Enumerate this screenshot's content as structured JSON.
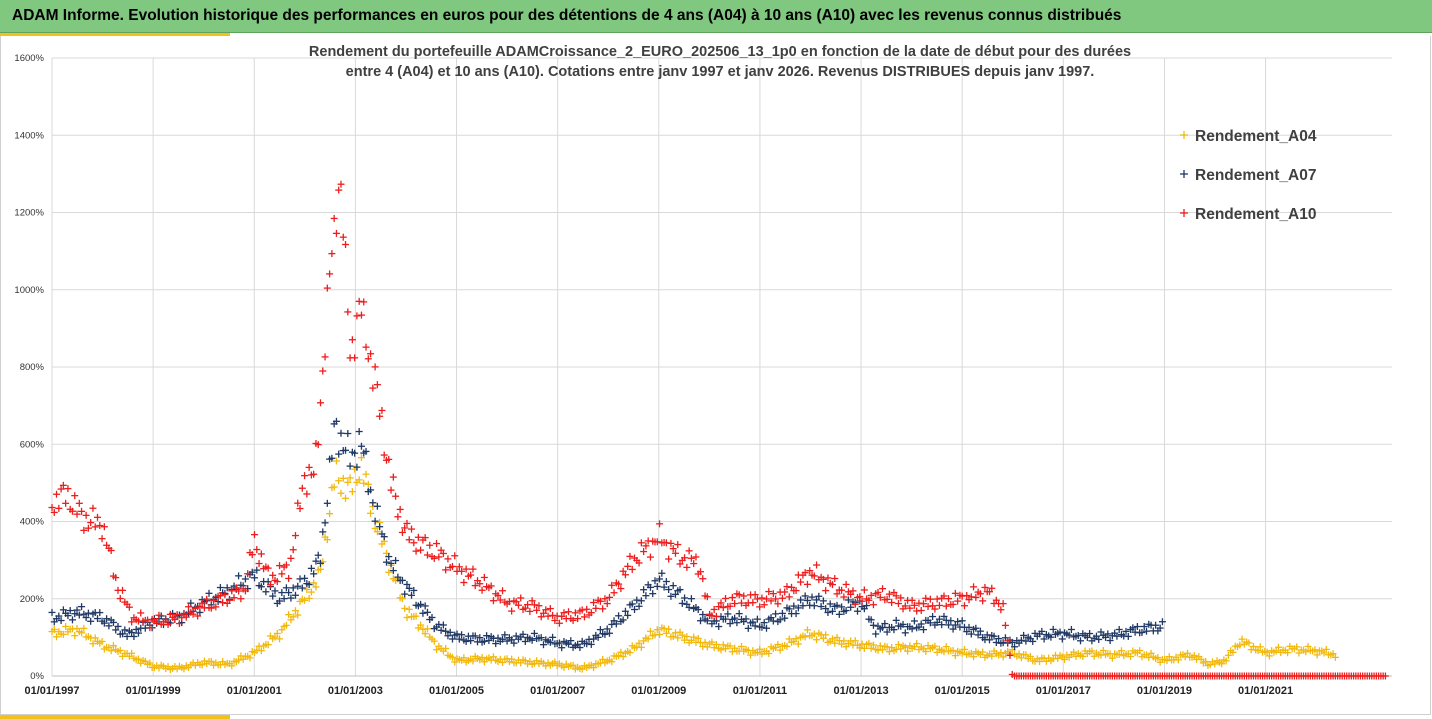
{
  "header": {
    "banner": "ADAM Informe. Evolution historique des performances en euros pour des détentions de 4 ans (A04) à 10 ans (A10) avec les revenus connus distribués"
  },
  "chart_data": {
    "type": "scatter",
    "title_line1": "Rendement du portefeuille ADAMCroissance_2_EURO_202506_13_1p0  en fonction de la date de début pour des durées",
    "title_line2": "entre 4 (A04) et 10 ans (A10). Cotations entre janv 1997 et janv 2026. Revenus DISTRIBUES depuis janv 1997.",
    "xlabel": "",
    "ylabel": "",
    "xlim": [
      1997.0,
      2023.5
    ],
    "ylim": [
      0,
      1600
    ],
    "y_ticks": [
      0,
      200,
      400,
      600,
      800,
      1000,
      1200,
      1400,
      1600
    ],
    "y_tick_labels": [
      "0%",
      "200%",
      "400%",
      "600%",
      "800%",
      "1000%",
      "1200%",
      "1400%",
      "1600%"
    ],
    "x_ticks": [
      1997,
      1999,
      2001,
      2003,
      2005,
      2007,
      2009,
      2011,
      2013,
      2015,
      2017,
      2019,
      2021
    ],
    "x_tick_labels": [
      "01/01/1997",
      "01/01/1999",
      "01/01/2001",
      "01/01/2003",
      "01/01/2005",
      "01/01/2007",
      "01/01/2009",
      "01/01/2011",
      "01/01/2013",
      "01/01/2015",
      "01/01/2017",
      "01/01/2019",
      "01/01/2021"
    ],
    "grid": true,
    "legend_position": "right",
    "marker": "+",
    "series": [
      {
        "name": "Rendement_A04",
        "color": "#f2b90d",
        "x": [
          1997.0,
          1997.5,
          1998.0,
          1998.5,
          1999.0,
          1999.5,
          2000.0,
          2000.5,
          2001.0,
          2001.5,
          2002.0,
          2002.3,
          2002.6,
          2002.9,
          2003.1,
          2003.4,
          2003.7,
          2004.0,
          2004.3,
          2004.6,
          2005.0,
          2005.5,
          2006.0,
          2006.5,
          2007.0,
          2007.5,
          2008.0,
          2008.5,
          2009.0,
          2009.5,
          2010.0,
          2010.5,
          2011.0,
          2011.5,
          2012.0,
          2012.5,
          2013.0,
          2013.5,
          2014.0,
          2014.5,
          2015.0,
          2015.5,
          2016.0,
          2016.5,
          2017.0,
          2017.5,
          2018.0,
          2018.5,
          2019.0,
          2019.5,
          2019.9,
          2020.2,
          2020.5,
          2021.0,
          2021.5,
          2022.0,
          2022.4
        ],
        "y": [
          110,
          120,
          80,
          55,
          25,
          20,
          35,
          30,
          60,
          110,
          200,
          260,
          520,
          480,
          550,
          400,
          280,
          170,
          130,
          80,
          40,
          45,
          40,
          35,
          30,
          20,
          40,
          70,
          120,
          100,
          80,
          70,
          60,
          80,
          110,
          90,
          80,
          70,
          75,
          70,
          60,
          55,
          60,
          40,
          50,
          60,
          55,
          60,
          40,
          55,
          30,
          40,
          90,
          60,
          70,
          65,
          55
        ]
      },
      {
        "name": "Rendement_A07",
        "color": "#203864",
        "x": [
          1997.0,
          1997.5,
          1998.0,
          1998.5,
          1999.0,
          1999.5,
          2000.0,
          2000.5,
          2001.0,
          2001.5,
          2002.0,
          2002.3,
          2002.6,
          2002.9,
          2003.1,
          2003.4,
          2003.7,
          2004.0,
          2004.3,
          2004.6,
          2005.0,
          2005.5,
          2006.0,
          2006.5,
          2007.0,
          2007.5,
          2008.0,
          2008.5,
          2009.0,
          2009.5,
          2010.0,
          2010.5,
          2011.0,
          2011.5,
          2012.0,
          2012.5,
          2013.0,
          2013.3,
          2013.7,
          2014.0,
          2014.5,
          2015.0,
          2015.5,
          2016.0,
          2016.5,
          2017.0,
          2017.5,
          2018.0,
          2018.5,
          2019.0
        ],
        "y": [
          150,
          165,
          150,
          105,
          140,
          150,
          190,
          220,
          260,
          200,
          240,
          300,
          650,
          560,
          610,
          420,
          290,
          230,
          180,
          130,
          100,
          95,
          95,
          100,
          85,
          80,
          120,
          180,
          250,
          200,
          140,
          150,
          130,
          160,
          200,
          170,
          190,
          120,
          130,
          125,
          145,
          130,
          100,
          85,
          105,
          110,
          100,
          105,
          120,
          130
        ]
      },
      {
        "name": "Rendement_A10",
        "color": "#ee1c1c",
        "x": [
          1997.0,
          1997.3,
          1997.6,
          1998.0,
          1998.3,
          1998.6,
          1999.0,
          1999.5,
          2000.0,
          2000.4,
          2000.8,
          2001.0,
          2001.3,
          2001.7,
          2002.0,
          2002.2,
          2002.5,
          2002.7,
          2002.9,
          2003.1,
          2003.3,
          2003.5,
          2003.7,
          2004.0,
          2004.3,
          2004.6,
          2005.0,
          2005.5,
          2006.0,
          2006.5,
          2007.0,
          2007.5,
          2008.0,
          2008.5,
          2009.0,
          2009.4,
          2009.8,
          2010.0,
          2010.5,
          2011.0,
          2011.5,
          2012.0,
          2012.5,
          2013.0,
          2013.5,
          2014.0,
          2014.5,
          2015.0,
          2015.5,
          2015.8,
          2016.0,
          2016.5,
          2017.0,
          2018.0,
          2019.0,
          2020.0,
          2021.0,
          2022.0,
          2023.4
        ],
        "y": [
          450,
          470,
          410,
          390,
          230,
          150,
          140,
          150,
          180,
          200,
          220,
          350,
          250,
          280,
          520,
          520,
          1050,
          1300,
          830,
          960,
          820,
          680,
          500,
          370,
          340,
          320,
          280,
          240,
          190,
          180,
          150,
          160,
          200,
          300,
          360,
          310,
          290,
          160,
          200,
          195,
          210,
          270,
          230,
          200,
          210,
          180,
          190,
          200,
          220,
          180,
          0,
          0,
          0,
          0,
          0,
          0,
          0,
          0,
          0
        ]
      }
    ]
  }
}
